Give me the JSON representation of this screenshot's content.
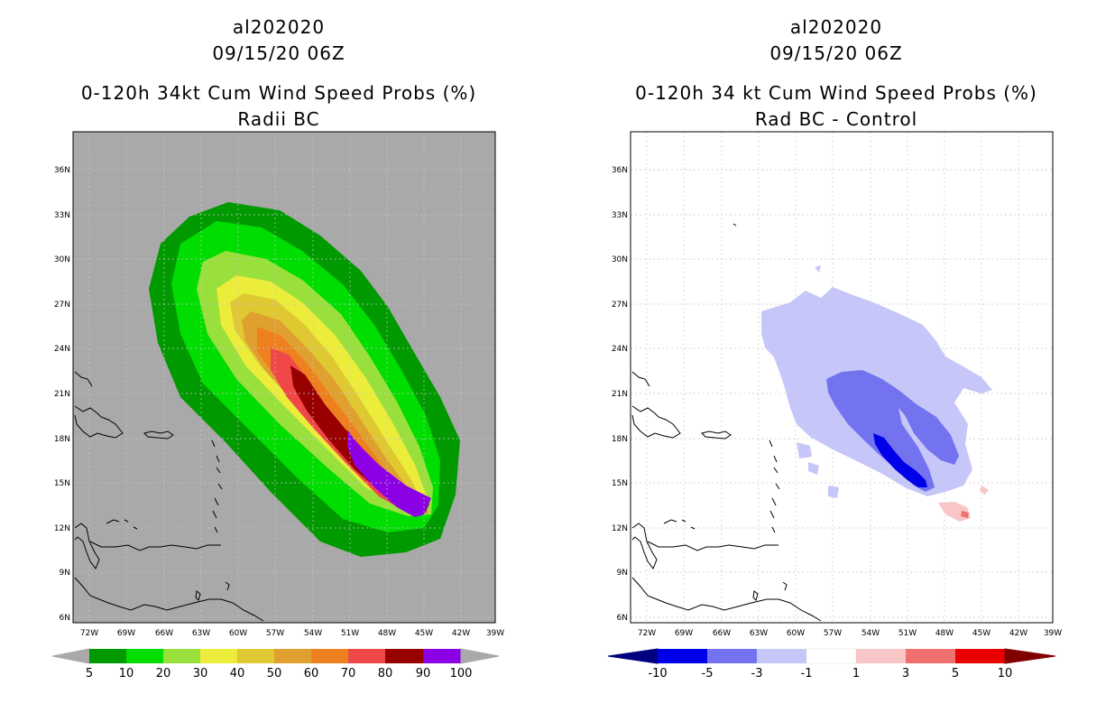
{
  "colors": {
    "land_outline": "#000000",
    "left_background": "#a9a9a9",
    "grid": "#c8c8c8",
    "left_scale": [
      "#009900",
      "#00dd00",
      "#99e03c",
      "#ecec3a",
      "#e0c832",
      "#e0a030",
      "#ee8020",
      "#f04848",
      "#980000",
      "#8c00e6"
    ],
    "right_scale": [
      "#000080",
      "#0000e8",
      "#7373f0",
      "#c6c6f8",
      "#ffffff",
      "#f8c6c6",
      "#f07070",
      "#e80000",
      "#800000"
    ]
  },
  "left": {
    "storm_id": "al202020",
    "datetime": "09/15/20 06Z",
    "title": "0-120h 34kt Cum Wind Speed Probs (%)",
    "subtitle": "Radii BC",
    "colorbar_labels": [
      "5",
      "10",
      "20",
      "30",
      "40",
      "50",
      "60",
      "70",
      "80",
      "90",
      "100"
    ]
  },
  "right": {
    "storm_id": "al202020",
    "datetime": "09/15/20 06Z",
    "title": "0-120h 34 kt Cum Wind Speed Probs (%)",
    "subtitle": "Rad BC - Control",
    "colorbar_labels": [
      "-10",
      "-5",
      "-3",
      "-1",
      "1",
      "3",
      "5",
      "10"
    ]
  },
  "axes": {
    "lon_labels": [
      "72W",
      "69W",
      "66W",
      "63W",
      "60W",
      "57W",
      "54W",
      "51W",
      "48W",
      "45W",
      "42W",
      "39W"
    ],
    "lat_labels": [
      "36N",
      "33N",
      "30N",
      "27N",
      "24N",
      "21N",
      "18N",
      "15N",
      "12N",
      "9N",
      "6N"
    ]
  }
}
